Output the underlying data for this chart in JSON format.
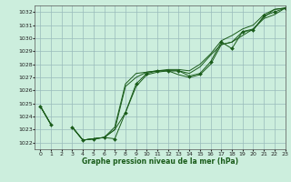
{
  "title": "Graphe pression niveau de la mer (hPa)",
  "bg_color": "#cceedd",
  "grid_color": "#99bbbb",
  "line_color": "#1a5c1a",
  "xlim": [
    -0.5,
    23
  ],
  "ylim": [
    1021.5,
    1032.5
  ],
  "yticks": [
    1022,
    1023,
    1024,
    1025,
    1026,
    1027,
    1028,
    1029,
    1030,
    1031,
    1032
  ],
  "xticks": [
    0,
    1,
    2,
    3,
    4,
    5,
    6,
    7,
    8,
    9,
    10,
    11,
    12,
    13,
    14,
    15,
    16,
    17,
    18,
    19,
    20,
    21,
    22,
    23
  ],
  "s1": [
    1024.8,
    1023.4,
    null,
    1023.2,
    1022.2,
    1022.3,
    1022.4,
    1022.3,
    1024.3,
    1026.5,
    1027.3,
    1027.5,
    1027.5,
    1027.5,
    1027.1,
    1027.3,
    1028.2,
    1029.7,
    1029.2,
    1030.5,
    1030.6,
    1031.7,
    1032.0,
    1032.3
  ],
  "s2": [
    1024.8,
    1023.4,
    null,
    1023.2,
    1022.2,
    1022.3,
    1022.4,
    1023.0,
    1026.3,
    1027.0,
    1027.4,
    1027.5,
    1027.5,
    1027.5,
    1027.3,
    1027.8,
    1028.7,
    1029.5,
    1029.7,
    1030.2,
    1030.7,
    1031.5,
    1031.8,
    1032.3
  ],
  "s3": [
    1024.8,
    1023.4,
    null,
    1023.2,
    1022.2,
    1022.3,
    1022.4,
    1023.2,
    1026.5,
    1027.3,
    1027.4,
    1027.5,
    1027.6,
    1027.6,
    1027.5,
    1028.0,
    1028.8,
    1029.8,
    1030.2,
    1030.7,
    1031.0,
    1031.8,
    1032.2,
    1032.3
  ],
  "s4": [
    1024.8,
    1023.4,
    null,
    1023.2,
    1022.2,
    1022.3,
    1022.4,
    1023.0,
    1024.3,
    1026.3,
    1027.2,
    1027.4,
    1027.5,
    1027.2,
    1027.0,
    1027.2,
    1028.0,
    1029.5,
    1029.7,
    1030.5,
    1030.7,
    1031.6,
    1032.2,
    1032.3
  ]
}
